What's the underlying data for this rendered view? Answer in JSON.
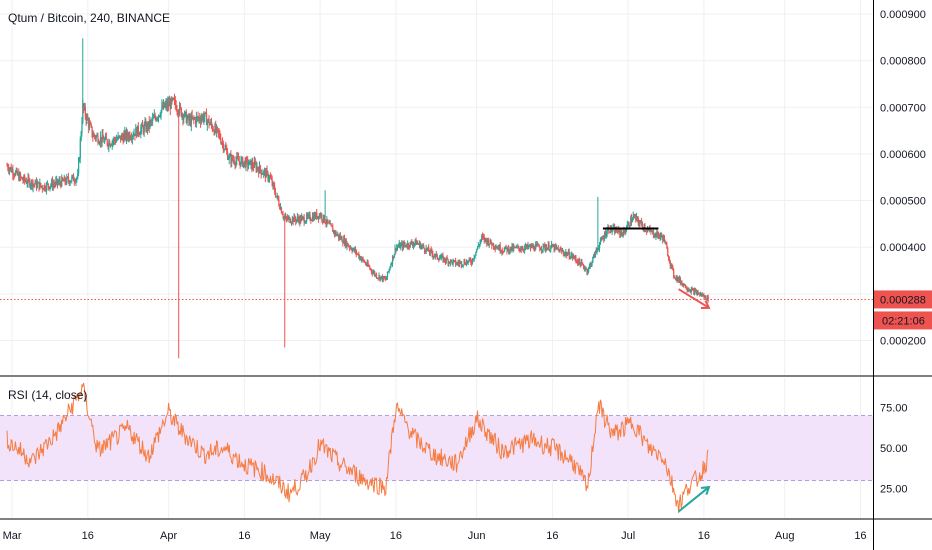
{
  "symbol_title": "Qtum / Bitcoin, 240, BINANCE",
  "rsi_title": "RSI (14, close)",
  "colors": {
    "up": "#26a69a",
    "down": "#ef5350",
    "rsi_line": "#f57c42",
    "rsi_band_fill": "#f3e3fa",
    "rsi_band_line": "#b39ddb",
    "price_line": "#ef5350",
    "grid": "#eef0f3",
    "axis_text": "#131722"
  },
  "chart_data": [
    {
      "type": "candlestick",
      "title": "Qtum / Bitcoin, 240, BINANCE",
      "x_ticks": [
        "Mar",
        "16",
        "Apr",
        "16",
        "May",
        "16",
        "Jun",
        "16",
        "Jul",
        "16",
        "Aug",
        "16"
      ],
      "y_ticks": [
        "0.000900",
        "0.000800",
        "0.000700",
        "0.000600",
        "0.000500",
        "0.000400",
        "0.000300",
        "0.000200"
      ],
      "ylim": [
        0.000126,
        0.00093
      ],
      "last_price": "0.000288",
      "countdown": "02:21:06",
      "grid": true,
      "path_points": [
        [
          "2019-02-28",
          0.000575
        ],
        [
          "2019-03-03",
          0.000545
        ],
        [
          "2019-03-07",
          0.00053
        ],
        [
          "2019-03-11",
          0.00054
        ],
        [
          "2019-03-14",
          0.00055
        ],
        [
          "2019-03-15",
          0.0007
        ],
        [
          "2019-03-17",
          0.00064
        ],
        [
          "2019-03-20",
          0.000625
        ],
        [
          "2019-03-24",
          0.00064
        ],
        [
          "2019-03-28",
          0.00066
        ],
        [
          "2019-03-31",
          0.0007
        ],
        [
          "2019-04-02",
          0.00071
        ],
        [
          "2019-04-05",
          0.00067
        ],
        [
          "2019-04-08",
          0.00068
        ],
        [
          "2019-04-11",
          0.00064
        ],
        [
          "2019-04-13",
          0.00059
        ],
        [
          "2019-04-18",
          0.000575
        ],
        [
          "2019-04-21",
          0.00055
        ],
        [
          "2019-04-24",
          0.00046
        ],
        [
          "2019-04-28",
          0.00046
        ],
        [
          "2019-05-01",
          0.00047
        ],
        [
          "2019-05-04",
          0.00043
        ],
        [
          "2019-05-08",
          0.00039
        ],
        [
          "2019-05-12",
          0.00034
        ],
        [
          "2019-05-14",
          0.00033
        ],
        [
          "2019-05-16",
          0.0004
        ],
        [
          "2019-05-20",
          0.00041
        ],
        [
          "2019-05-24",
          0.00038
        ],
        [
          "2019-05-28",
          0.000365
        ],
        [
          "2019-05-31",
          0.00037
        ],
        [
          "2019-06-02",
          0.00042
        ],
        [
          "2019-06-06",
          0.000395
        ],
        [
          "2019-06-12",
          0.0004
        ],
        [
          "2019-06-16",
          0.0004
        ],
        [
          "2019-06-20",
          0.00038
        ],
        [
          "2019-06-23",
          0.00035
        ],
        [
          "2019-06-25",
          0.0004
        ],
        [
          "2019-06-27",
          0.00044
        ],
        [
          "2019-06-30",
          0.00043
        ],
        [
          "2019-07-02",
          0.000465
        ],
        [
          "2019-07-05",
          0.000435
        ],
        [
          "2019-07-08",
          0.00042
        ],
        [
          "2019-07-10",
          0.00034
        ],
        [
          "2019-07-13",
          0.00031
        ],
        [
          "2019-07-16",
          0.000295
        ],
        [
          "2019-07-17",
          0.000288
        ]
      ],
      "spikes": [
        {
          "date": "2019-03-15",
          "high": 0.000848
        },
        {
          "date": "2019-04-03",
          "low": 0.000162
        },
        {
          "date": "2019-04-24",
          "low": 0.000185
        },
        {
          "date": "2019-05-02",
          "high": 0.000522
        },
        {
          "date": "2019-06-25",
          "high": 0.000508
        }
      ],
      "annotations": [
        {
          "type": "horizontal-segment",
          "from": "2019-06-26",
          "to": "2019-07-07",
          "value": 0.00044,
          "color": "#000000"
        },
        {
          "type": "arrow",
          "from": [
            "2019-07-11",
            0.00031
          ],
          "to": [
            "2019-07-17",
            0.00027
          ],
          "color": "#ef5350"
        }
      ]
    },
    {
      "type": "line",
      "title": "RSI (14, close)",
      "y_ticks": [
        "75.00",
        "50.00",
        "25.00"
      ],
      "ylim": [
        7,
        93
      ],
      "band": [
        30,
        70
      ],
      "path_points": [
        [
          "2019-02-28",
          55
        ],
        [
          "2019-03-05",
          42
        ],
        [
          "2019-03-10",
          60
        ],
        [
          "2019-03-15",
          87
        ],
        [
          "2019-03-18",
          48
        ],
        [
          "2019-03-24",
          62
        ],
        [
          "2019-03-28",
          45
        ],
        [
          "2019-04-01",
          72
        ],
        [
          "2019-04-03",
          62
        ],
        [
          "2019-04-08",
          46
        ],
        [
          "2019-04-12",
          50
        ],
        [
          "2019-04-16",
          40
        ],
        [
          "2019-04-20",
          35
        ],
        [
          "2019-04-25",
          22
        ],
        [
          "2019-04-28",
          32
        ],
        [
          "2019-05-01",
          52
        ],
        [
          "2019-05-05",
          40
        ],
        [
          "2019-05-10",
          30
        ],
        [
          "2019-05-14",
          26
        ],
        [
          "2019-05-16",
          75
        ],
        [
          "2019-05-20",
          55
        ],
        [
          "2019-05-24",
          45
        ],
        [
          "2019-05-28",
          40
        ],
        [
          "2019-06-01",
          68
        ],
        [
          "2019-06-06",
          48
        ],
        [
          "2019-06-12",
          55
        ],
        [
          "2019-06-16",
          50
        ],
        [
          "2019-06-20",
          42
        ],
        [
          "2019-06-23",
          25
        ],
        [
          "2019-06-25",
          77
        ],
        [
          "2019-06-28",
          58
        ],
        [
          "2019-07-02",
          66
        ],
        [
          "2019-07-05",
          50
        ],
        [
          "2019-07-08",
          45
        ],
        [
          "2019-07-10",
          25
        ],
        [
          "2019-07-11",
          15
        ],
        [
          "2019-07-13",
          27
        ],
        [
          "2019-07-15",
          32
        ],
        [
          "2019-07-17",
          45
        ]
      ],
      "annotations": [
        {
          "type": "arrow",
          "from": [
            "2019-07-11",
            11
          ],
          "to": [
            "2019-07-17",
            26
          ],
          "color": "#26a69a"
        }
      ]
    }
  ]
}
